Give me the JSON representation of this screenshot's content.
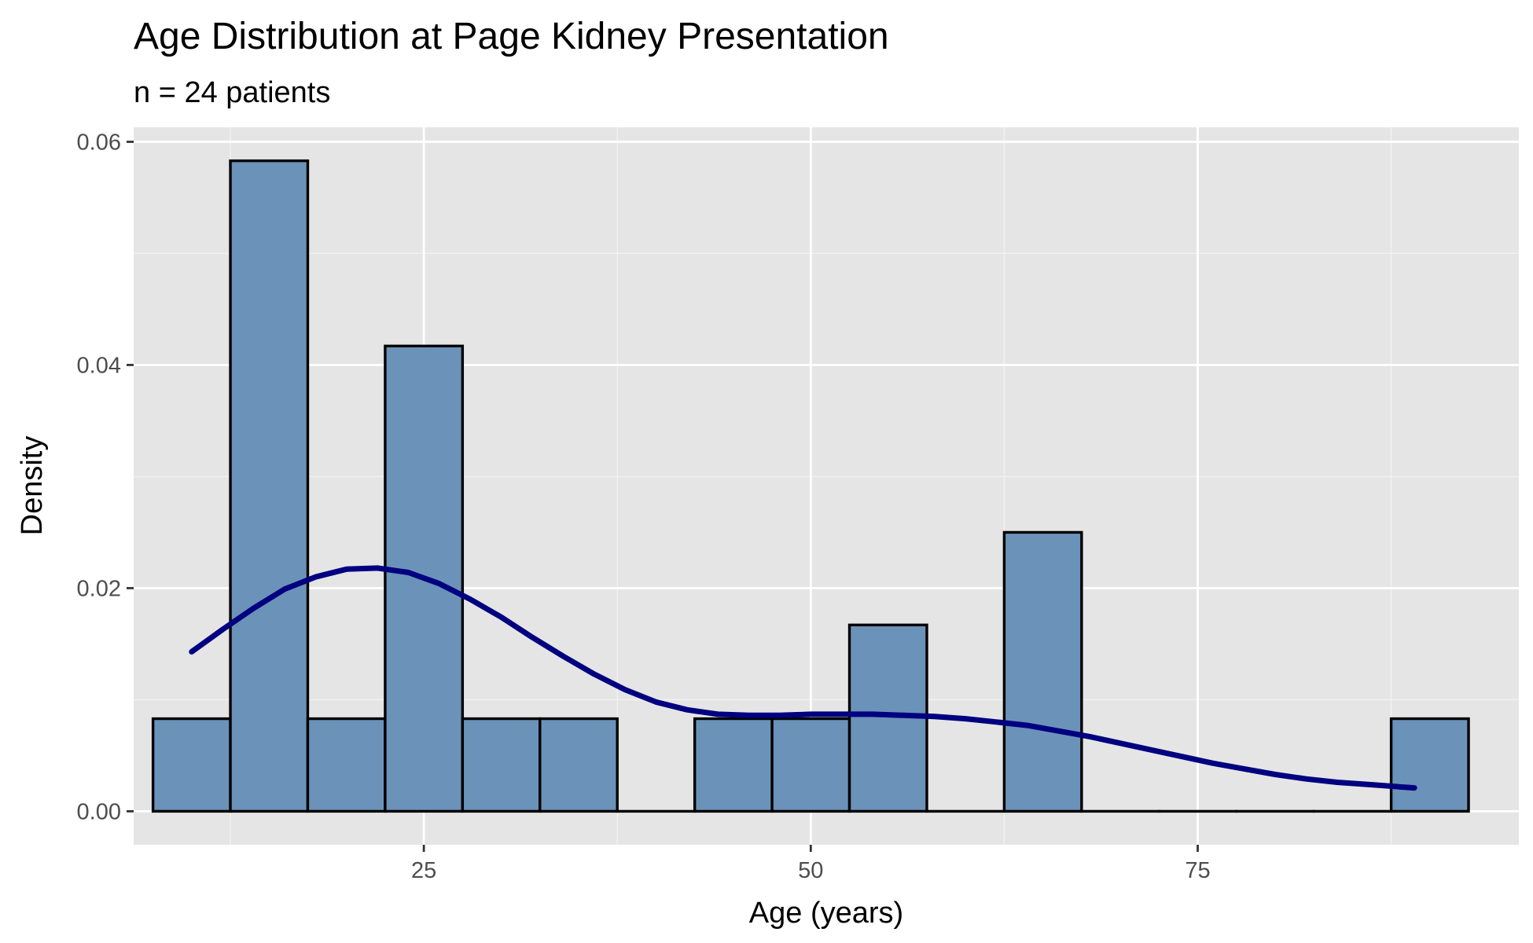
{
  "chart_data": {
    "type": "histogram",
    "title": "Age Distribution at Page Kidney Presentation",
    "subtitle": "n = 24 patients",
    "xlabel": "Age (years)",
    "ylabel": "Density",
    "xlim": [
      6.25,
      95.75
    ],
    "ylim": [
      -0.003,
      0.0613
    ],
    "x_ticks": [
      25,
      50,
      75
    ],
    "x_tick_labels": [
      "25",
      "50",
      "75"
    ],
    "y_ticks": [
      0,
      0.02,
      0.04,
      0.06
    ],
    "y_tick_labels": [
      "0.00",
      "0.02",
      "0.04",
      "0.06"
    ],
    "bin_width": 5,
    "bins": [
      {
        "start": 7.5,
        "end": 12.5,
        "density": 0.0083
      },
      {
        "start": 12.5,
        "end": 17.5,
        "density": 0.0583
      },
      {
        "start": 17.5,
        "end": 22.5,
        "density": 0.0083
      },
      {
        "start": 22.5,
        "end": 27.5,
        "density": 0.0417
      },
      {
        "start": 27.5,
        "end": 32.5,
        "density": 0.0083
      },
      {
        "start": 32.5,
        "end": 37.5,
        "density": 0.0083
      },
      {
        "start": 37.5,
        "end": 42.5,
        "density": 0
      },
      {
        "start": 42.5,
        "end": 47.5,
        "density": 0.0083
      },
      {
        "start": 47.5,
        "end": 52.5,
        "density": 0.0083
      },
      {
        "start": 52.5,
        "end": 57.5,
        "density": 0.0167
      },
      {
        "start": 57.5,
        "end": 62.5,
        "density": 0
      },
      {
        "start": 62.5,
        "end": 67.5,
        "density": 0.025
      },
      {
        "start": 67.5,
        "end": 72.5,
        "density": 0
      },
      {
        "start": 72.5,
        "end": 77.5,
        "density": 0
      },
      {
        "start": 77.5,
        "end": 82.5,
        "density": 0
      },
      {
        "start": 82.5,
        "end": 87.5,
        "density": 0
      },
      {
        "start": 87.5,
        "end": 92.5,
        "density": 0.0083
      }
    ],
    "density_curve": {
      "x": [
        10,
        12,
        14,
        16,
        18,
        20,
        22,
        24,
        26,
        28,
        30,
        32,
        34,
        36,
        38,
        40,
        42,
        44,
        46,
        48,
        50,
        52,
        54,
        56,
        58,
        60,
        62,
        64,
        66,
        68,
        70,
        72,
        74,
        76,
        78,
        80,
        82,
        84,
        86,
        88,
        89
      ],
      "y": [
        0.0143,
        0.0163,
        0.0182,
        0.0199,
        0.021,
        0.0217,
        0.0218,
        0.0214,
        0.0204,
        0.019,
        0.0174,
        0.0156,
        0.0139,
        0.0123,
        0.0109,
        0.0098,
        0.0091,
        0.0087,
        0.0086,
        0.0086,
        0.0087,
        0.0087,
        0.0087,
        0.0086,
        0.0085,
        0.0083,
        0.008,
        0.0077,
        0.0072,
        0.0067,
        0.0061,
        0.0055,
        0.0049,
        0.0043,
        0.0038,
        0.0033,
        0.0029,
        0.0026,
        0.0024,
        0.0022,
        0.0021
      ]
    },
    "grid": true,
    "colors": {
      "panel_background": "#e5e5e5",
      "grid_major": "#ffffff",
      "grid_minor": "#f2f2f2",
      "bar_fill": "#6b92b9",
      "bar_stroke": "#000000",
      "curve": "#000080",
      "tick_label": "#4d4d4d",
      "tick_mark": "#333333"
    }
  }
}
